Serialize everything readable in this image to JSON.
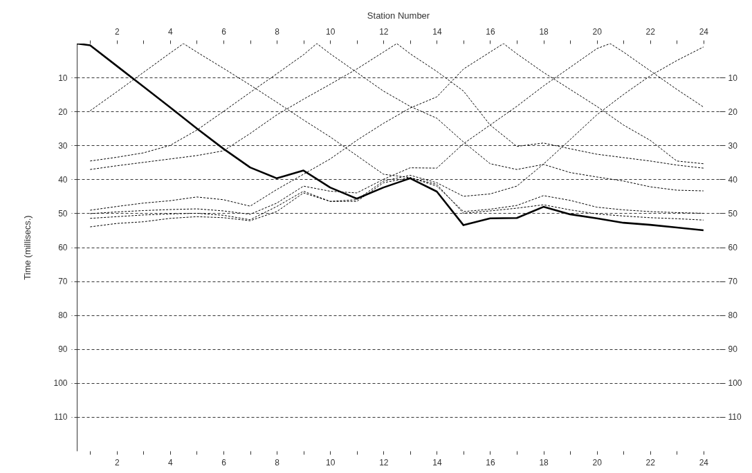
{
  "chart_data": {
    "type": "line",
    "x2label": "Station Number",
    "ylabel": "Time (millisecs.)",
    "xlim": [
      0.5,
      24.6
    ],
    "xticks": [
      {
        "value": 1,
        "label": null
      },
      2,
      {
        "value": 3,
        "label": null
      },
      4,
      {
        "value": 5,
        "label": null
      },
      6,
      {
        "value": 7,
        "label": null
      },
      8,
      {
        "value": 9,
        "label": null
      },
      10,
      {
        "value": 11,
        "label": null
      },
      12,
      {
        "value": 13,
        "label": null
      },
      14,
      {
        "value": 15,
        "label": null
      },
      16,
      {
        "value": 17,
        "label": null
      },
      18,
      {
        "value": 19,
        "label": null
      },
      20,
      {
        "value": 21,
        "label": null
      },
      22,
      {
        "value": 23,
        "label": null
      },
      24
    ],
    "x2lim": [
      0.5,
      24.6
    ],
    "x2ticks": [
      {
        "value": 1,
        "label": null
      },
      2,
      {
        "value": 3,
        "label": null
      },
      4,
      {
        "value": 5,
        "label": null
      },
      6,
      {
        "value": 7,
        "label": null
      },
      8,
      {
        "value": 9,
        "label": null
      },
      10,
      {
        "value": 11,
        "label": null
      },
      12,
      {
        "value": 13,
        "label": null
      },
      14,
      {
        "value": 15,
        "label": null
      },
      16,
      {
        "value": 17,
        "label": null
      },
      18,
      {
        "value": 19,
        "label": null
      },
      20,
      {
        "value": 21,
        "label": null
      },
      22,
      {
        "value": 23,
        "label": null
      },
      24
    ],
    "ylim": [
      120,
      0
    ],
    "yticks": [
      10,
      20,
      30,
      40,
      50,
      60,
      70,
      80,
      90,
      100,
      110
    ],
    "y2lim": [
      120,
      0
    ],
    "y2ticks": [
      10,
      20,
      30,
      40,
      50,
      60,
      70,
      80,
      90,
      100,
      110
    ],
    "grid": "y",
    "series": [
      {
        "color": "#000000",
        "line_style": "solid",
        "x": [
          0.5,
          1,
          2,
          3,
          4,
          5,
          6,
          7,
          8,
          9,
          10,
          11,
          12,
          13,
          14,
          15,
          16,
          17,
          18,
          19,
          20,
          21,
          22,
          23,
          24
        ],
        "values": [
          0,
          0.5,
          6.6,
          12.7,
          18.8,
          25,
          31,
          36.5,
          39.7,
          37.4,
          42.4,
          45.7,
          42.4,
          39.7,
          43.6,
          53.5,
          51.5,
          51.4,
          48.1,
          50.3,
          51.5,
          52.8,
          53.4,
          54.2,
          55
        ]
      },
      {
        "color": "#000000",
        "line_style": "dashed",
        "x": [
          1,
          2,
          3,
          4,
          4.5,
          5,
          6,
          7,
          8,
          9,
          10,
          11,
          12,
          13,
          14,
          15,
          16,
          17,
          18,
          19,
          20,
          21,
          22,
          23,
          24
        ],
        "values": [
          19.8,
          14.2,
          8.5,
          2.8,
          0,
          2.5,
          7.3,
          12.2,
          17.3,
          22.5,
          27.5,
          33,
          38.5,
          39.5,
          42,
          49.5,
          48.8,
          47.7,
          44.8,
          46.2,
          48.2,
          49,
          49.5,
          49.8,
          50
        ]
      },
      {
        "color": "#000000",
        "line_style": "dashed",
        "x": [
          1,
          2,
          3,
          4,
          5,
          6,
          7,
          8,
          9,
          9.5,
          10,
          11,
          12,
          13,
          14,
          15,
          16,
          17,
          18,
          19,
          20,
          21,
          22,
          23,
          24
        ],
        "values": [
          34.6,
          33.5,
          32.2,
          30,
          25.5,
          20,
          14.4,
          8.9,
          3.3,
          0,
          3,
          8.5,
          14,
          18.5,
          22,
          29,
          35.4,
          37.1,
          35.6,
          38,
          39.3,
          40.5,
          42.2,
          43.2,
          43.4
        ]
      },
      {
        "color": "#000000",
        "line_style": "dashed",
        "x": [
          1,
          2,
          3,
          4,
          5,
          6,
          7,
          8,
          9,
          10,
          11,
          12,
          12.5,
          13,
          14,
          15,
          16,
          17,
          18,
          19,
          20,
          21,
          22,
          23,
          24
        ],
        "values": [
          37.1,
          36,
          35,
          34,
          33,
          31.6,
          26.5,
          21,
          16.4,
          12,
          7.5,
          2.5,
          0,
          3,
          8.2,
          14,
          24,
          30.3,
          29.3,
          31,
          32.6,
          33.6,
          34.6,
          35.8,
          36.7
        ]
      },
      {
        "color": "#000000",
        "line_style": "dashed",
        "x": [
          1,
          2,
          3,
          4,
          5,
          6,
          7,
          8,
          9,
          10,
          11,
          12,
          13,
          14,
          15,
          16,
          16.5,
          17,
          18,
          19,
          20,
          21,
          22,
          23,
          24
        ],
        "values": [
          49.1,
          48,
          47,
          46.3,
          45.2,
          46,
          47.9,
          43,
          38.5,
          34,
          28.5,
          23.5,
          19,
          15.7,
          7.5,
          2.5,
          0,
          3,
          8.5,
          13.5,
          18.5,
          24,
          28.5,
          34.6,
          35.4
        ]
      },
      {
        "color": "#000000",
        "line_style": "dashed",
        "x": [
          1,
          2,
          3,
          4,
          5,
          6,
          7,
          8,
          9,
          10,
          11,
          12,
          13,
          14,
          15,
          16,
          17,
          18,
          19,
          20,
          20.5,
          21,
          22,
          23,
          24
        ],
        "values": [
          50.1,
          49.6,
          49.2,
          48.9,
          48.7,
          49.3,
          50.3,
          47,
          42,
          43.5,
          44,
          40,
          36.6,
          36.7,
          29.5,
          24,
          18.5,
          12.5,
          7,
          1.5,
          0,
          2.5,
          8,
          13.5,
          18.7
        ]
      },
      {
        "color": "#000000",
        "line_style": "dashed",
        "x": [
          1,
          2,
          3,
          4,
          5,
          6,
          7,
          8,
          9,
          10,
          11,
          12,
          13,
          14,
          15,
          16,
          17,
          18,
          19,
          20,
          21,
          22,
          23,
          24
        ],
        "values": [
          51.5,
          51,
          50.5,
          50.2,
          50,
          50.6,
          51.9,
          48,
          43.5,
          46.5,
          46,
          40.5,
          38.8,
          41,
          45,
          44.3,
          42,
          35.5,
          28.3,
          21,
          15,
          9.5,
          5,
          1
        ]
      },
      {
        "color": "#000000",
        "line_style": "dashed",
        "x": [
          1,
          2,
          3,
          4,
          5,
          6,
          7,
          8,
          9,
          10,
          11,
          12,
          13,
          14,
          15,
          16,
          17,
          18,
          19,
          20,
          21,
          22,
          23,
          24
        ],
        "values": [
          54,
          53,
          52.5,
          51.5,
          51,
          51.3,
          52.2,
          49.5,
          44,
          46.5,
          46.5,
          41,
          39.5,
          41.5,
          50,
          49.3,
          48.5,
          47.5,
          49,
          50.2,
          50.8,
          51.3,
          51.6,
          52
        ]
      }
    ]
  }
}
